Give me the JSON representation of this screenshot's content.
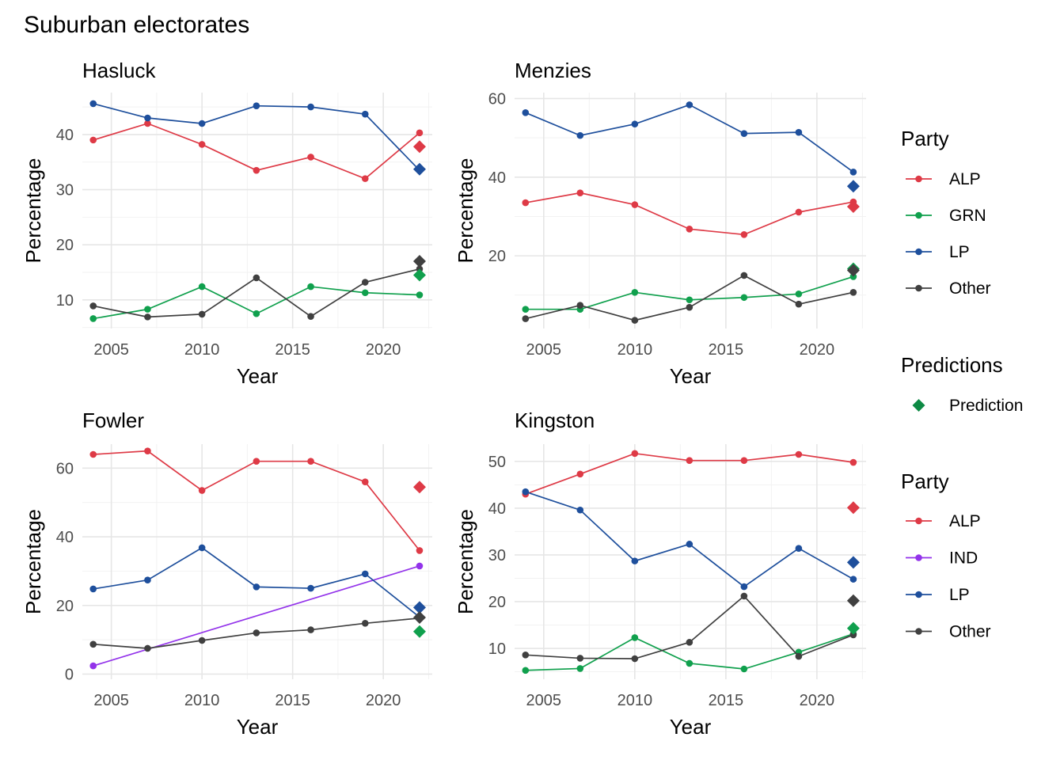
{
  "title": "Suburban electorates",
  "colors": {
    "ALP": "#de3a46",
    "GRN": "#10a04d",
    "LP": "#1e4f9c",
    "Other": "#404040",
    "IND": "#9333ea",
    "Prediction": "#0d8a44"
  },
  "chart_data": [
    {
      "type": "line",
      "title": "Hasluck",
      "xlabel": "Year",
      "ylabel": "Percentage",
      "xlim": [
        2003.4,
        2022.7
      ],
      "ylim": [
        4.8,
        47.6
      ],
      "xticks": [
        2005,
        2010,
        2015,
        2020
      ],
      "yticks": [
        10,
        20,
        30,
        40
      ],
      "x": [
        2004,
        2007,
        2010,
        2013,
        2016,
        2019,
        2022
      ],
      "series": [
        {
          "name": "ALP",
          "values": [
            39,
            42,
            38.2,
            33.5,
            35.9,
            32,
            40.3
          ]
        },
        {
          "name": "GRN",
          "values": [
            6.6,
            8.3,
            12.4,
            7.5,
            12.4,
            11.3,
            10.9
          ]
        },
        {
          "name": "LP",
          "values": [
            45.6,
            43,
            42,
            45.2,
            45,
            43.7,
            33.5
          ]
        },
        {
          "name": "Other",
          "values": [
            8.9,
            6.9,
            7.4,
            14,
            7,
            13.2,
            15.6
          ]
        }
      ],
      "predictions": [
        {
          "party": "ALP",
          "value": 37.8
        },
        {
          "party": "LP",
          "value": 33.7
        },
        {
          "party": "Other",
          "value": 17
        },
        {
          "party": "GRN",
          "value": 14.5
        }
      ]
    },
    {
      "type": "line",
      "title": "Menzies",
      "xlabel": "Year",
      "ylabel": "Percentage",
      "xlim": [
        2003.4,
        2022.7
      ],
      "ylim": [
        1.5,
        61.5
      ],
      "xticks": [
        2005,
        2010,
        2015,
        2020
      ],
      "yticks": [
        20,
        40,
        60
      ],
      "x": [
        2004,
        2007,
        2010,
        2013,
        2016,
        2019,
        2022
      ],
      "series": [
        {
          "name": "ALP",
          "values": [
            33.5,
            36,
            33,
            26.8,
            25.4,
            31.1,
            33.7
          ]
        },
        {
          "name": "GRN",
          "values": [
            6.4,
            6.4,
            10.7,
            8.8,
            9.4,
            10.3,
            14.7
          ]
        },
        {
          "name": "LP",
          "values": [
            56.4,
            50.6,
            53.5,
            58.4,
            51.1,
            51.4,
            41.3
          ]
        },
        {
          "name": "Other",
          "values": [
            4,
            7.4,
            3.6,
            6.9,
            15,
            7.7,
            10.7
          ]
        }
      ],
      "predictions": [
        {
          "party": "LP",
          "value": 37.7
        },
        {
          "party": "ALP",
          "value": 32.5
        },
        {
          "party": "GRN",
          "value": 16.7
        },
        {
          "party": "Other",
          "value": 16.3
        }
      ]
    },
    {
      "type": "line",
      "title": "Fowler",
      "xlabel": "Year",
      "ylabel": "Percentage",
      "xlim": [
        2003.4,
        2022.7
      ],
      "ylim": [
        -1.5,
        67
      ],
      "xticks": [
        2005,
        2010,
        2015,
        2020
      ],
      "yticks": [
        0,
        20,
        40,
        60
      ],
      "x": [
        2004,
        2007,
        2010,
        2013,
        2016,
        2019,
        2022
      ],
      "series": [
        {
          "name": "ALP",
          "values": [
            64,
            65,
            53.5,
            62,
            62,
            56,
            36
          ]
        },
        {
          "name": "IND",
          "x": [
            2004,
            2022
          ],
          "values": [
            2.4,
            31.5
          ]
        },
        {
          "name": "LP",
          "values": [
            24.8,
            27.4,
            36.8,
            25.4,
            25,
            29.2,
            16.6
          ]
        },
        {
          "name": "Other",
          "values": [
            8.7,
            7.5,
            9.8,
            12,
            12.9,
            14.8,
            16.3
          ]
        }
      ],
      "predictions": [
        {
          "party": "ALP",
          "value": 54.5
        },
        {
          "party": "LP",
          "value": 19.4
        },
        {
          "party": "Other",
          "value": 16.5
        },
        {
          "party": "GRN",
          "value": 12.4
        }
      ]
    },
    {
      "type": "line",
      "title": "Kingston",
      "xlabel": "Year",
      "ylabel": "Percentage",
      "xlim": [
        2003.4,
        2022.7
      ],
      "ylim": [
        3.4,
        53.7
      ],
      "xticks": [
        2005,
        2010,
        2015,
        2020
      ],
      "yticks": [
        10,
        20,
        30,
        40,
        50
      ],
      "x": [
        2004,
        2007,
        2010,
        2013,
        2016,
        2019,
        2022
      ],
      "series": [
        {
          "name": "ALP",
          "values": [
            43,
            47.3,
            51.7,
            50.2,
            50.2,
            51.5,
            49.8
          ]
        },
        {
          "name": "GRN",
          "values": [
            5.3,
            5.7,
            12.3,
            6.8,
            5.6,
            9.2,
            13.1
          ]
        },
        {
          "name": "LP",
          "values": [
            43.5,
            39.6,
            28.7,
            32.3,
            23.2,
            31.4,
            24.8
          ]
        },
        {
          "name": "Other",
          "values": [
            8.6,
            7.9,
            7.8,
            11.3,
            21.2,
            8.3,
            12.9
          ]
        }
      ],
      "predictions": [
        {
          "party": "ALP",
          "value": 40.1
        },
        {
          "party": "LP",
          "value": 28.4
        },
        {
          "party": "Other",
          "value": 20.2
        },
        {
          "party": "GRN",
          "value": 14.3
        }
      ]
    }
  ],
  "legend_top": {
    "title": "Party",
    "items": [
      "ALP",
      "GRN",
      "LP",
      "Other"
    ]
  },
  "legend_pred": {
    "title": "Predictions",
    "items": [
      "Prediction"
    ]
  },
  "legend_bottom": {
    "title": "Party",
    "items": [
      "ALP",
      "IND",
      "LP",
      "Other"
    ]
  }
}
